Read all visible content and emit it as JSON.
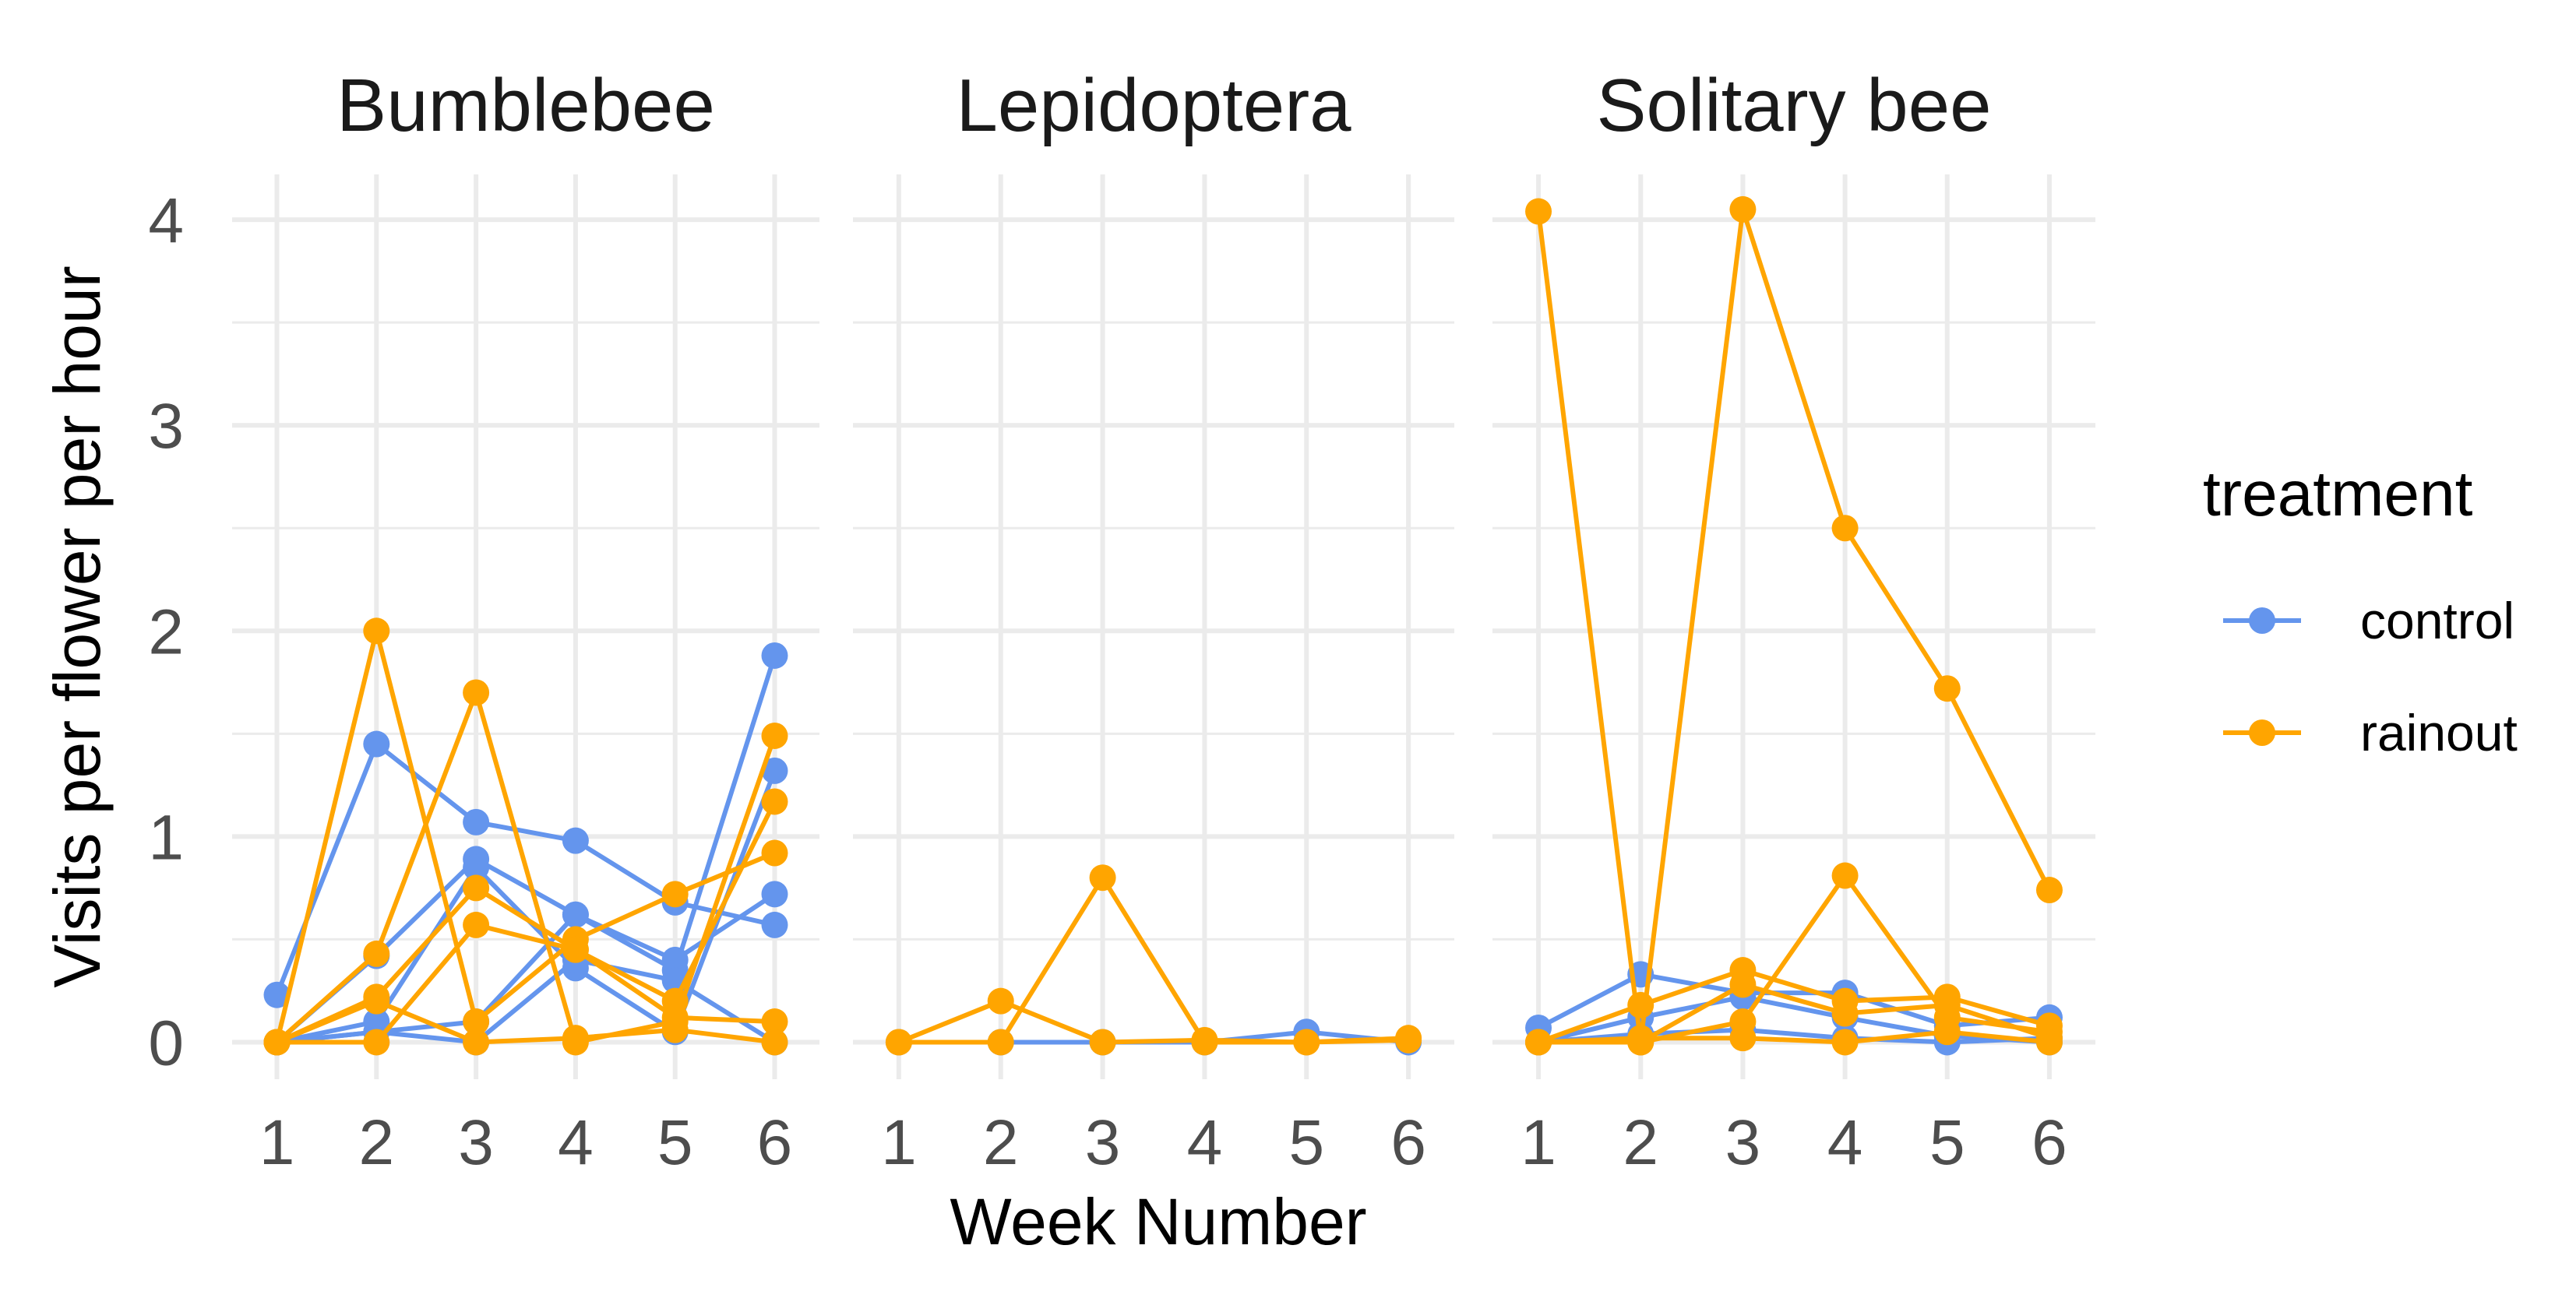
{
  "chart_data": {
    "type": "line",
    "xlabel": "Week Number",
    "ylabel": "Visits per flower per hour",
    "x_ticks": [
      1,
      2,
      3,
      4,
      5,
      6
    ],
    "y_ticks": [
      0,
      1,
      2,
      3,
      4
    ],
    "xlim": [
      0.55,
      6.45
    ],
    "ylim": [
      -0.18,
      4.22
    ],
    "grid": true,
    "legend": {
      "title": "treatment",
      "position": "right",
      "entries": [
        {
          "label": "control",
          "color": "#6495ED"
        },
        {
          "label": "rainout",
          "color": "#FFA500"
        }
      ]
    },
    "facets": [
      {
        "title": "Bumblebee",
        "series": [
          {
            "treatment": "control",
            "x": [
              1,
              2,
              3,
              4,
              5,
              6
            ],
            "y": [
              0.23,
              1.45,
              1.07,
              0.98,
              0.68,
              0.57
            ]
          },
          {
            "treatment": "control",
            "x": [
              1,
              2,
              3,
              4,
              5,
              6
            ],
            "y": [
              0,
              0.42,
              0.89,
              0.62,
              0.35,
              1.88
            ]
          },
          {
            "treatment": "control",
            "x": [
              1,
              2,
              3,
              4,
              5,
              6
            ],
            "y": [
              0,
              0.1,
              0.85,
              0.36,
              0.05,
              1.32
            ]
          },
          {
            "treatment": "control",
            "x": [
              1,
              2,
              3,
              4,
              5,
              6
            ],
            "y": [
              0,
              0.05,
              0.1,
              0.62,
              0.4,
              0.72
            ]
          },
          {
            "treatment": "control",
            "x": [
              1,
              2,
              3,
              4,
              5,
              6
            ],
            "y": [
              0,
              0.05,
              0,
              0.4,
              0.3,
              0.0
            ]
          },
          {
            "treatment": "rainout",
            "x": [
              1,
              2,
              3,
              4,
              5,
              6
            ],
            "y": [
              0,
              2.0,
              0.1,
              0.5,
              0.72,
              0.92
            ]
          },
          {
            "treatment": "rainout",
            "x": [
              1,
              2,
              3,
              4,
              5,
              6
            ],
            "y": [
              0,
              0.43,
              1.7,
              0.0,
              0.1,
              1.49
            ]
          },
          {
            "treatment": "rainout",
            "x": [
              1,
              2,
              3,
              4,
              5,
              6
            ],
            "y": [
              0,
              0.22,
              0.75,
              0.45,
              0.2,
              1.17
            ]
          },
          {
            "treatment": "rainout",
            "x": [
              1,
              2,
              3,
              4,
              5,
              6
            ],
            "y": [
              0,
              0.0,
              0.57,
              0.45,
              0.12,
              0.1
            ]
          },
          {
            "treatment": "rainout",
            "x": [
              1,
              2,
              3,
              4,
              5,
              6
            ],
            "y": [
              0,
              0.2,
              0.0,
              0.02,
              0.06,
              0.0
            ]
          }
        ]
      },
      {
        "title": "Lepidoptera",
        "series": [
          {
            "treatment": "control",
            "x": [
              1,
              2,
              3,
              4,
              5,
              6
            ],
            "y": [
              0,
              0,
              0,
              0,
              0.05,
              0
            ]
          },
          {
            "treatment": "rainout",
            "x": [
              1,
              2,
              3,
              4,
              5,
              6
            ],
            "y": [
              0,
              0.2,
              0,
              0.01,
              0,
              0.02
            ]
          },
          {
            "treatment": "rainout",
            "x": [
              1,
              2,
              3,
              4,
              5,
              6
            ],
            "y": [
              0,
              0,
              0.8,
              0,
              0,
              0.01
            ]
          }
        ]
      },
      {
        "title": "Solitary bee",
        "series": [
          {
            "treatment": "control",
            "x": [
              1,
              2,
              3,
              4,
              5,
              6
            ],
            "y": [
              0.07,
              0.33,
              0.24,
              0.24,
              0.08,
              0.12
            ]
          },
          {
            "treatment": "control",
            "x": [
              1,
              2,
              3,
              4,
              5,
              6
            ],
            "y": [
              0,
              0.12,
              0.22,
              0.12,
              0.03,
              0.0
            ]
          },
          {
            "treatment": "control",
            "x": [
              1,
              2,
              3,
              4,
              5,
              6
            ],
            "y": [
              0,
              0.04,
              0.06,
              0.02,
              0.0,
              0.02
            ]
          },
          {
            "treatment": "rainout",
            "x": [
              1,
              2,
              3,
              4,
              5,
              6
            ],
            "y": [
              4.04,
              0.0,
              4.05,
              2.5,
              1.72,
              0.74
            ]
          },
          {
            "treatment": "rainout",
            "x": [
              1,
              2,
              3,
              4,
              5,
              6
            ],
            "y": [
              0,
              0.18,
              0.35,
              0.2,
              0.22,
              0.08
            ]
          },
          {
            "treatment": "rainout",
            "x": [
              1,
              2,
              3,
              4,
              5,
              6
            ],
            "y": [
              0,
              0.0,
              0.1,
              0.81,
              0.12,
              0.05
            ]
          },
          {
            "treatment": "rainout",
            "x": [
              1,
              2,
              3,
              4,
              5,
              6
            ],
            "y": [
              0,
              0.0,
              0.28,
              0.14,
              0.18,
              0.02
            ]
          },
          {
            "treatment": "rainout",
            "x": [
              1,
              2,
              3,
              4,
              5,
              6
            ],
            "y": [
              0,
              0.02,
              0.02,
              0.0,
              0.05,
              0.0
            ]
          }
        ]
      }
    ]
  }
}
